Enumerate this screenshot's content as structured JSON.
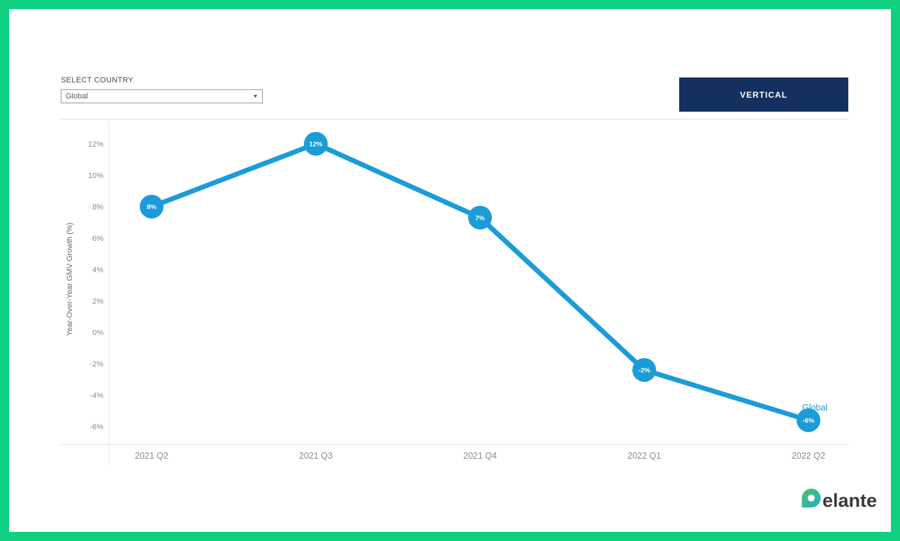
{
  "controls": {
    "select_country_label": "SELECT COUNTRY",
    "select_country_value": "Global",
    "vertical_button_label": "VERTICAL"
  },
  "chart_data": {
    "type": "line",
    "title": "",
    "categories": [
      "2021 Q2",
      "2021 Q3",
      "2021 Q4",
      "2022 Q1",
      "2022 Q2"
    ],
    "series": [
      {
        "name": "Global",
        "values": [
          8,
          12,
          7.3,
          -2.4,
          -5.6
        ],
        "point_labels": [
          "8%",
          "12%",
          "7%",
          "-2%",
          "-6%"
        ],
        "color": "#1b9cd8"
      }
    ],
    "xlabel": "",
    "ylabel": "Year-Over-Year GMV Growth (%)",
    "y_tick_values": [
      12,
      10,
      8,
      6,
      4,
      2,
      0,
      -2,
      -4,
      -6
    ],
    "y_tick_labels": [
      "12%",
      "10%",
      "8%",
      "6%",
      "4%",
      "2%",
      "0%",
      "-2%",
      "-4%",
      "-6%"
    ],
    "ylim": [
      -7.2,
      13.6
    ],
    "grid": "off",
    "legend": "series-end-label",
    "axis_color": "#e0e0e0",
    "tick_color": "#8b8b8b",
    "axis_title_color": "#6b6b6b"
  },
  "colors": {
    "frame_green": "#0ed07f",
    "button_navy": "#13305f",
    "accent_blue": "#1b9cd8",
    "logo_gradient_start": "#43c964",
    "logo_gradient_end": "#28a7ca",
    "logo_text": "#3a3a3a"
  },
  "logo": {
    "d": "D",
    "rest": "elante"
  }
}
